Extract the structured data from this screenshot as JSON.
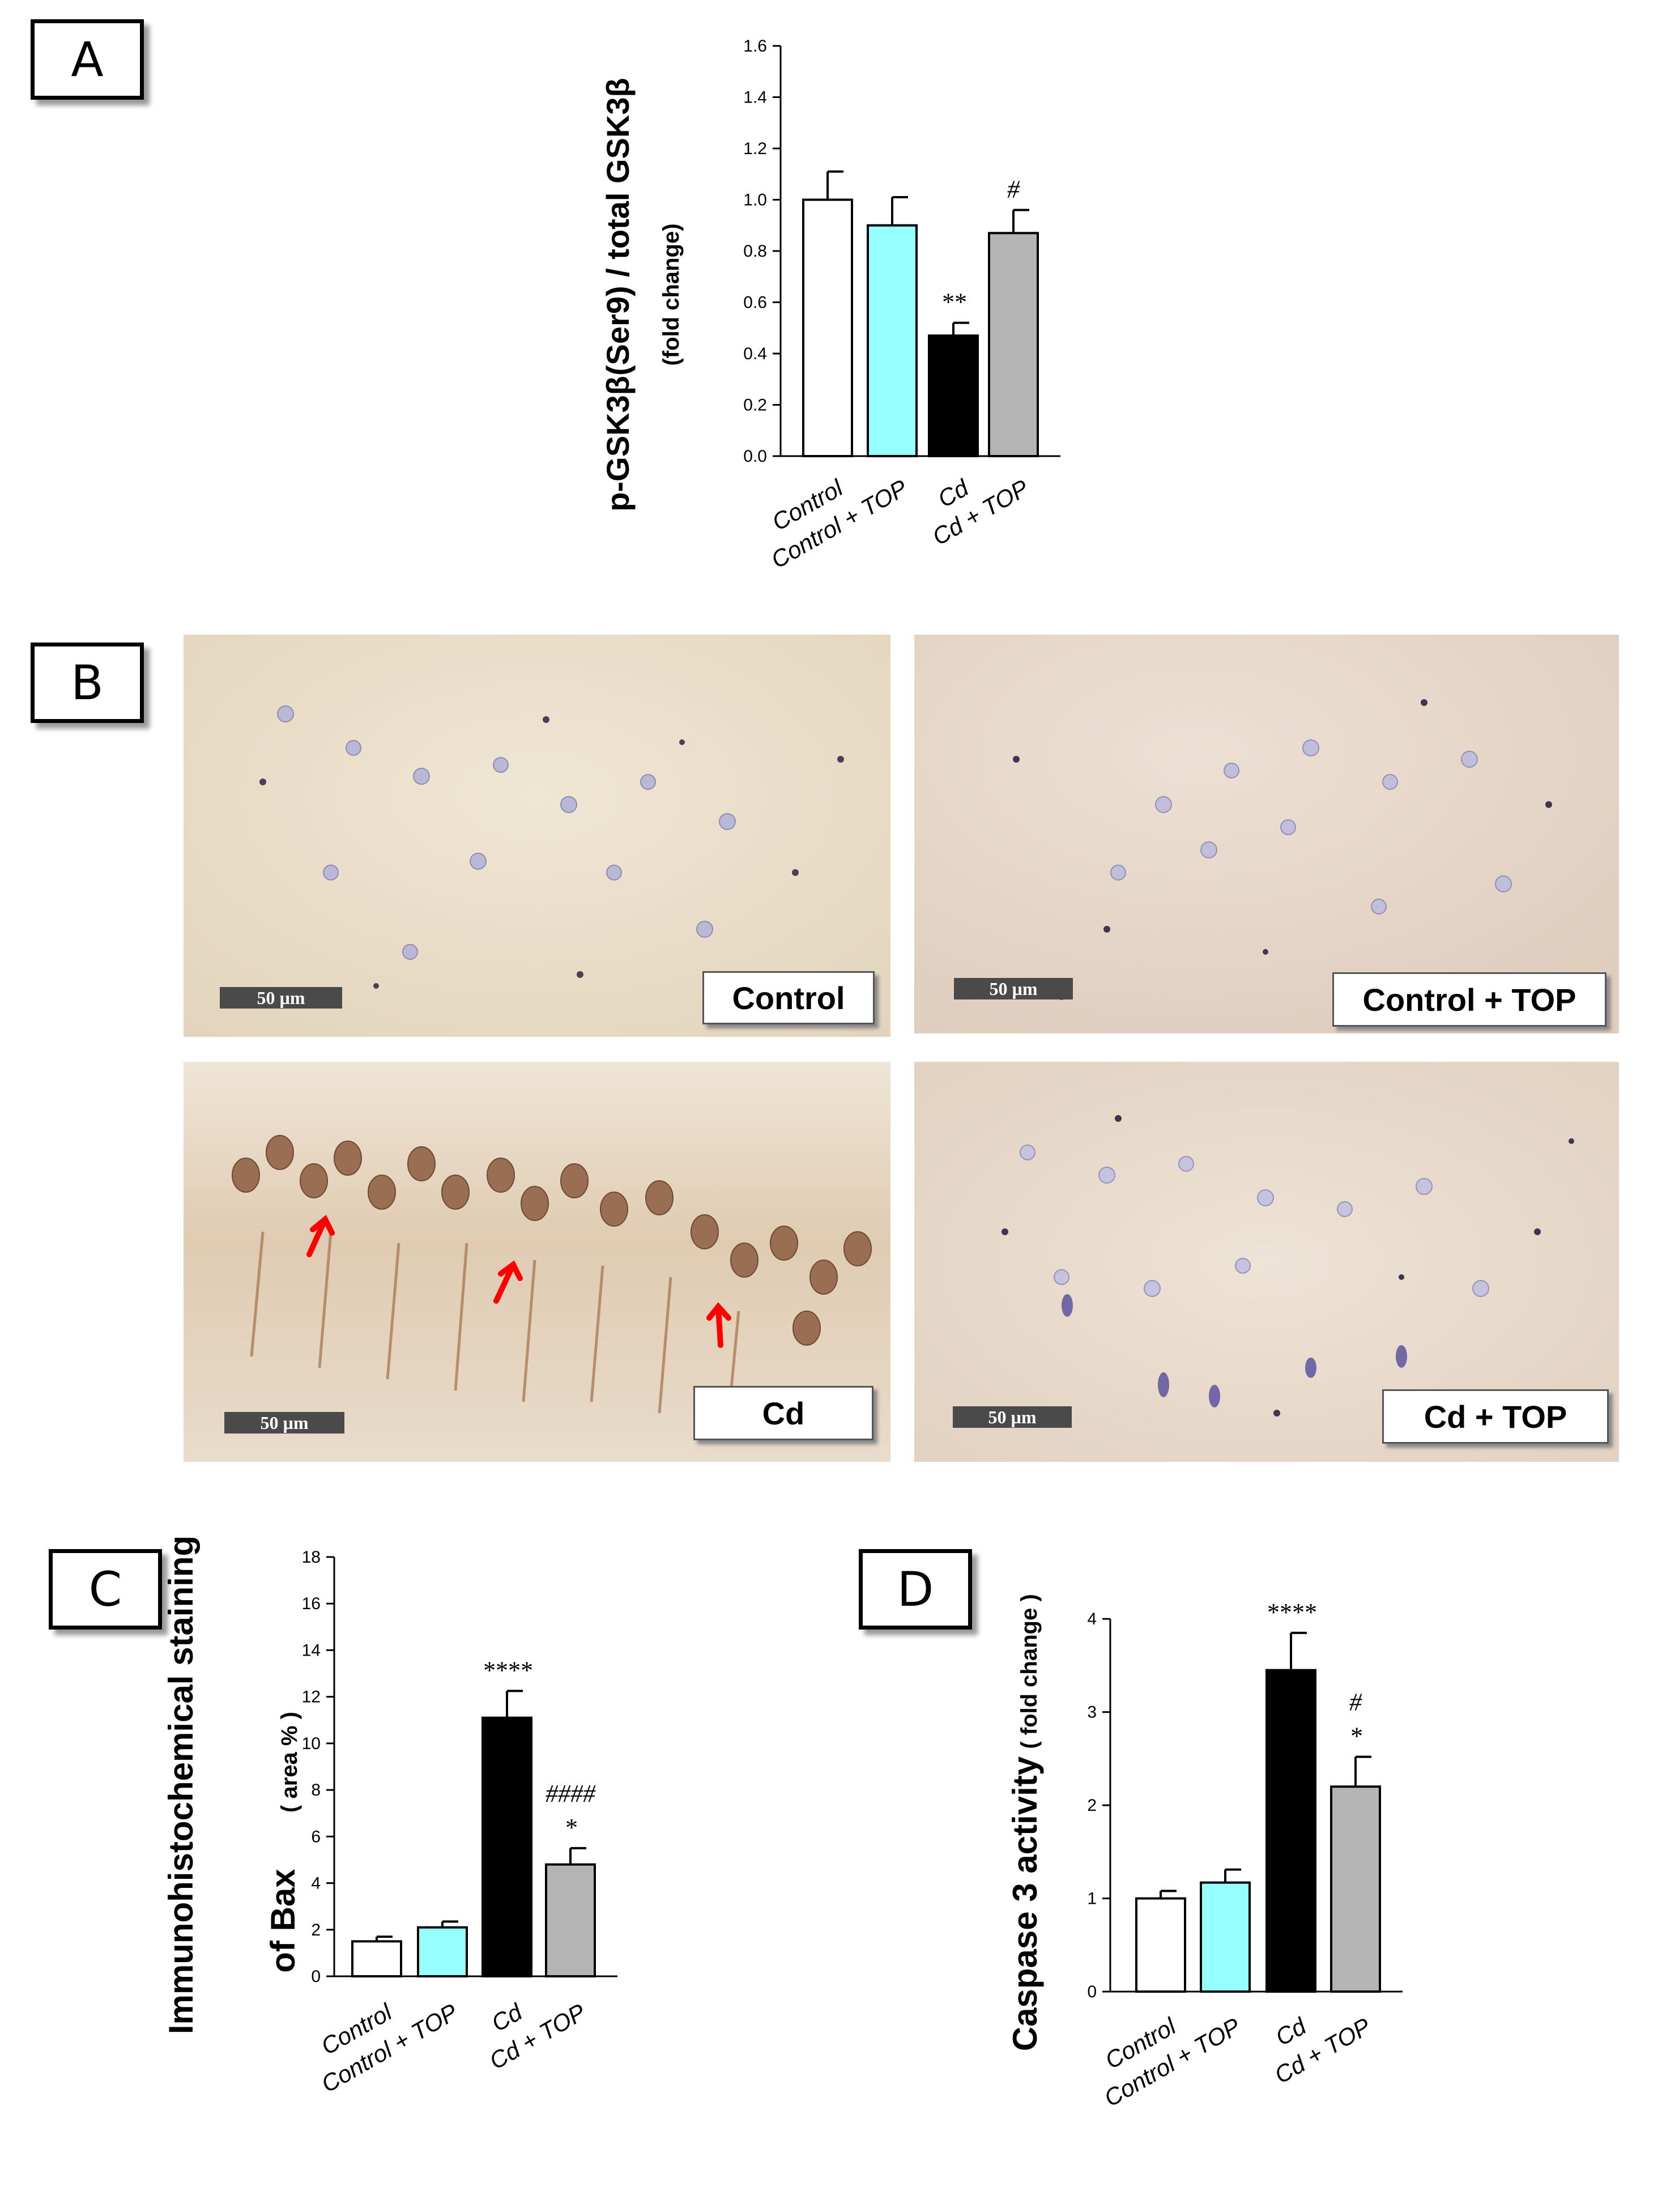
{
  "panel_labels": {
    "a": "A",
    "b": "B",
    "c": "C",
    "d": "D"
  },
  "colors": {
    "control": "#ffffff",
    "control_top": "#96ffff",
    "cd": "#000000",
    "cd_top": "#b4b4b4"
  },
  "chart_data": [
    {
      "id": "A",
      "type": "bar",
      "categories": [
        "Control",
        "Control + TOP",
        "Cd",
        "Cd + TOP"
      ],
      "values": [
        1.0,
        0.9,
        0.47,
        0.87
      ],
      "errors": [
        0.11,
        0.11,
        0.05,
        0.09
      ],
      "significance": [
        "",
        "",
        "**",
        "#"
      ],
      "ylabel_main": "p-GSK3β(Ser9) / total GSK3β",
      "ylabel_sub": "(fold change)",
      "ylim": [
        0,
        1.6
      ],
      "yticks": [
        "0.0",
        "0.2",
        "0.4",
        "0.6",
        "0.8",
        "1.0",
        "1.2",
        "1.4",
        "1.6"
      ]
    },
    {
      "id": "C",
      "type": "bar",
      "categories": [
        "Control",
        "Control + TOP",
        "Cd",
        "Cd + TOP"
      ],
      "values": [
        1.5,
        2.1,
        11.1,
        4.8
      ],
      "errors": [
        0.2,
        0.25,
        1.15,
        0.7
      ],
      "significance": [
        "",
        "",
        "****",
        "####|*"
      ],
      "ylabel_main": "Immunohistochemical staining",
      "ylabel_line2": "of  Bax",
      "ylabel_sub": "( area % )",
      "ylim": [
        0,
        18
      ],
      "yticks": [
        "0",
        "2",
        "4",
        "6",
        "8",
        "10",
        "12",
        "14",
        "16",
        "18"
      ]
    },
    {
      "id": "D",
      "type": "bar",
      "categories": [
        "Control",
        "Control + TOP",
        "Cd",
        "Cd + TOP"
      ],
      "values": [
        1.0,
        1.17,
        3.45,
        2.2
      ],
      "errors": [
        0.08,
        0.14,
        0.4,
        0.32
      ],
      "significance": [
        "",
        "",
        "****",
        "#|*"
      ],
      "ylabel_main": "Caspase 3 activity",
      "ylabel_sub": "( fold change )",
      "ylim": [
        0,
        4.5
      ],
      "yticks": [
        "0",
        "1",
        "2",
        "3",
        "4"
      ]
    }
  ],
  "micrographs": [
    {
      "label": "Control",
      "scale": "50 µm"
    },
    {
      "label": "Control + TOP",
      "scale": "50 µm"
    },
    {
      "label": "Cd",
      "scale": "50 µm"
    },
    {
      "label": "Cd + TOP",
      "scale": "50 µm"
    }
  ]
}
